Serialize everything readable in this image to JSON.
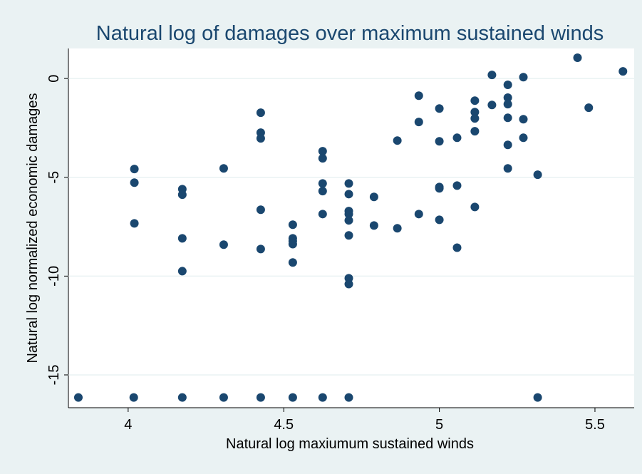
{
  "chart_data": {
    "type": "scatter",
    "title": "Natural log of damages over maximum sustained winds",
    "x_label": "Natural log maxiumum sustained winds",
    "y_label": "Natural log normalized economic damages",
    "color": "#1a476f",
    "grid": true,
    "xlim": [
      3.808,
      5.626
    ],
    "ylim": [
      -16.66,
      1.52
    ],
    "xticks": [
      4,
      4.5,
      5,
      5.5
    ],
    "yticks": [
      -15,
      -10,
      -5,
      0
    ],
    "x": [
      3.84,
      4.018,
      4.174,
      4.307,
      4.426,
      4.529,
      4.625,
      4.709,
      5.316,
      4.02,
      4.02,
      4.02,
      4.174,
      4.174,
      4.174,
      4.174,
      4.307,
      4.307,
      4.426,
      4.426,
      4.426,
      4.426,
      4.426,
      4.529,
      4.529,
      4.529,
      4.529,
      4.529,
      4.625,
      4.625,
      4.625,
      4.625,
      4.625,
      4.709,
      4.709,
      4.709,
      4.709,
      4.709,
      4.709,
      4.709,
      4.709,
      4.79,
      4.79,
      4.865,
      4.865,
      4.934,
      4.934,
      4.934,
      5.0,
      5.0,
      5.0,
      5.0,
      5.0,
      5.057,
      5.057,
      5.057,
      5.114,
      5.114,
      5.114,
      5.114,
      5.114,
      5.169,
      5.169,
      5.22,
      5.22,
      5.22,
      5.22,
      5.22,
      5.22,
      5.27,
      5.27,
      5.27,
      5.316,
      5.444,
      5.48,
      5.59
    ],
    "values": [
      -16.14,
      -16.14,
      -16.14,
      -16.14,
      -16.14,
      -16.14,
      -16.14,
      -16.14,
      -16.14,
      -4.58,
      -5.27,
      -7.33,
      -5.6,
      -5.88,
      -8.09,
      -9.75,
      -4.55,
      -8.41,
      -1.73,
      -2.74,
      -3.03,
      -6.64,
      -8.63,
      -7.4,
      -8.09,
      -8.23,
      -8.38,
      -9.31,
      -3.68,
      -4.04,
      -5.31,
      -5.7,
      -6.86,
      -5.31,
      -5.85,
      -6.71,
      -6.86,
      -7.18,
      -7.94,
      -10.11,
      -10.4,
      -5.99,
      -7.44,
      -7.58,
      -3.14,
      -0.87,
      -2.2,
      -6.86,
      -1.52,
      -3.18,
      -5.49,
      -5.56,
      -7.15,
      -3.0,
      -5.42,
      -8.56,
      -1.12,
      -1.7,
      -2.02,
      -2.67,
      -6.5,
      0.18,
      -1.34,
      -0.32,
      -0.97,
      -1.3,
      -1.99,
      -3.36,
      -4.55,
      0.07,
      -2.06,
      -3.0,
      -4.87,
      1.05,
      -1.48,
      0.36
    ]
  }
}
